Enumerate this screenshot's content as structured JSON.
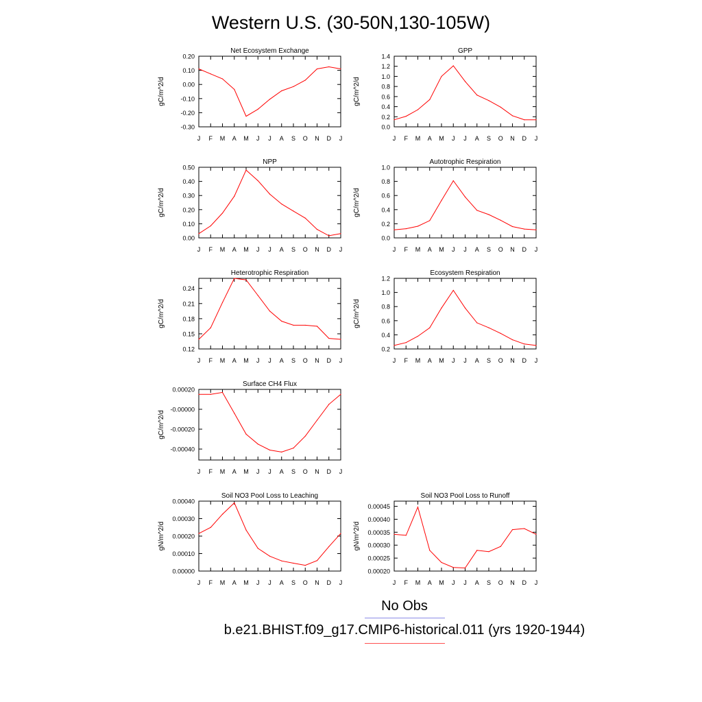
{
  "page": {
    "title": "Western U.S. (30-50N,130-105W)"
  },
  "months": [
    "J",
    "F",
    "M",
    "A",
    "M",
    "J",
    "J",
    "A",
    "S",
    "O",
    "N",
    "D",
    "J"
  ],
  "legend": [
    {
      "label": "No Obs",
      "color": "#8a8ae6"
    },
    {
      "label": "b.e21.BHIST.f09_g17.CMIP6-historical.011 (yrs 1920-1944)",
      "color": "#ff5050"
    }
  ],
  "chart_data": [
    {
      "type": "line",
      "title": "Net Ecosystem Exchange",
      "ylabel": "gC/m^2/d",
      "ylim": [
        -0.3,
        0.2
      ],
      "yticks": [
        "0.20",
        "0.10",
        "0.00",
        "-0.10",
        "-0.20",
        "-0.30"
      ],
      "ytick_values": [
        0.2,
        0.1,
        0.0,
        -0.1,
        -0.2,
        -0.3
      ],
      "series": [
        {
          "color": "#ff0000",
          "values": [
            0.11,
            0.075,
            0.04,
            -0.035,
            -0.225,
            -0.175,
            -0.105,
            -0.045,
            -0.015,
            0.03,
            0.11,
            0.125,
            0.11
          ]
        }
      ]
    },
    {
      "type": "line",
      "title": "GPP",
      "ylabel": "gC/m^2/d",
      "ylim": [
        0.0,
        1.4
      ],
      "yticks": [
        "1.4",
        "1.2",
        "1.0",
        "0.8",
        "0.6",
        "0.4",
        "0.2",
        "0.0"
      ],
      "ytick_values": [
        1.4,
        1.2,
        1.0,
        0.8,
        0.6,
        0.4,
        0.2,
        0.0
      ],
      "series": [
        {
          "color": "#ff0000",
          "values": [
            0.14,
            0.21,
            0.34,
            0.54,
            1.0,
            1.21,
            0.9,
            0.63,
            0.52,
            0.39,
            0.22,
            0.14,
            0.14
          ]
        }
      ]
    },
    {
      "type": "line",
      "title": "NPP",
      "ylabel": "gC/m^2/d",
      "ylim": [
        0.0,
        0.5
      ],
      "yticks": [
        "0.50",
        "0.40",
        "0.30",
        "0.20",
        "0.10",
        "0.00"
      ],
      "ytick_values": [
        0.5,
        0.4,
        0.3,
        0.2,
        0.1,
        0.0
      ],
      "series": [
        {
          "color": "#ff0000",
          "values": [
            0.03,
            0.085,
            0.175,
            0.295,
            0.48,
            0.405,
            0.31,
            0.24,
            0.19,
            0.14,
            0.06,
            0.015,
            0.03
          ]
        }
      ]
    },
    {
      "type": "line",
      "title": "Autotrophic Respiration",
      "ylabel": "gC/m^2/d",
      "ylim": [
        0.0,
        1.0
      ],
      "yticks": [
        "1.0",
        "0.8",
        "0.6",
        "0.4",
        "0.2",
        "0.0"
      ],
      "ytick_values": [
        1.0,
        0.8,
        0.6,
        0.4,
        0.2,
        0.0
      ],
      "series": [
        {
          "color": "#ff0000",
          "values": [
            0.115,
            0.13,
            0.165,
            0.245,
            0.53,
            0.81,
            0.58,
            0.39,
            0.33,
            0.25,
            0.16,
            0.125,
            0.115
          ]
        }
      ]
    },
    {
      "type": "line",
      "title": "Heterotrophic Respiration",
      "ylabel": "gC/m^2/d",
      "ylim": [
        0.12,
        0.26
      ],
      "yticks": [
        "0.24",
        "0.21",
        "0.18",
        "0.15",
        "0.12"
      ],
      "ytick_values": [
        0.24,
        0.21,
        0.18,
        0.15,
        0.12
      ],
      "series": [
        {
          "color": "#ff0000",
          "values": [
            0.139,
            0.162,
            0.212,
            0.26,
            0.257,
            0.226,
            0.195,
            0.175,
            0.167,
            0.167,
            0.165,
            0.141,
            0.139
          ]
        }
      ]
    },
    {
      "type": "line",
      "title": "Ecosystem Respiration",
      "ylabel": "gC/m^2/d",
      "ylim": [
        0.2,
        1.2
      ],
      "yticks": [
        "1.2",
        "1.0",
        "0.8",
        "0.6",
        "0.4",
        "0.2"
      ],
      "ytick_values": [
        1.2,
        1.0,
        0.8,
        0.6,
        0.4,
        0.2
      ],
      "series": [
        {
          "color": "#ff0000",
          "values": [
            0.25,
            0.29,
            0.38,
            0.5,
            0.78,
            1.03,
            0.78,
            0.57,
            0.5,
            0.42,
            0.33,
            0.27,
            0.25
          ]
        }
      ]
    },
    {
      "type": "line",
      "title": "Surface CH4 Flux",
      "ylabel": "gC/m^2/d",
      "ylim": [
        -0.00051,
        0.0002
      ],
      "yticks": [
        "0.00020",
        "-0.00000",
        "-0.00020",
        "-0.00040"
      ],
      "ytick_values": [
        0.0002,
        0.0,
        -0.0002,
        -0.0004
      ],
      "series": [
        {
          "color": "#ff0000",
          "values": [
            0.00015,
            0.00015,
            0.00017,
            -4e-05,
            -0.00025,
            -0.00035,
            -0.00041,
            -0.00043,
            -0.00039,
            -0.00027,
            -0.00011,
            5e-05,
            0.00015
          ]
        }
      ]
    },
    {
      "type": "line",
      "title": "Soil NO3 Pool Loss to Leaching",
      "ylabel": "gN/m^2/d",
      "ylim": [
        0.0,
        0.0004
      ],
      "yticks": [
        "0.00040",
        "0.00030",
        "0.00020",
        "0.00010",
        "0.00000"
      ],
      "ytick_values": [
        0.0004,
        0.0003,
        0.0002,
        0.0001,
        0.0
      ],
      "series": [
        {
          "color": "#ff0000",
          "values": [
            0.000215,
            0.00025,
            0.000325,
            0.00039,
            0.000235,
            0.00013,
            8.5e-05,
            5.8e-05,
            4.5e-05,
            3.3e-05,
            6e-05,
            0.00014,
            0.000215
          ]
        }
      ]
    },
    {
      "type": "line",
      "title": "Soil NO3 Pool Loss to Runoff",
      "ylabel": "gN/m^2/d",
      "ylim": [
        0.0002,
        0.00047
      ],
      "yticks": [
        "0.00045",
        "0.00040",
        "0.00035",
        "0.00030",
        "0.00025",
        "0.00020"
      ],
      "ytick_values": [
        0.00045,
        0.0004,
        0.00035,
        0.0003,
        0.00025,
        0.0002
      ],
      "series": [
        {
          "color": "#ff0000",
          "values": [
            0.000342,
            0.000338,
            0.000447,
            0.00028,
            0.000233,
            0.000214,
            0.000212,
            0.00028,
            0.000275,
            0.000295,
            0.00036,
            0.000364,
            0.000342
          ]
        }
      ]
    }
  ]
}
